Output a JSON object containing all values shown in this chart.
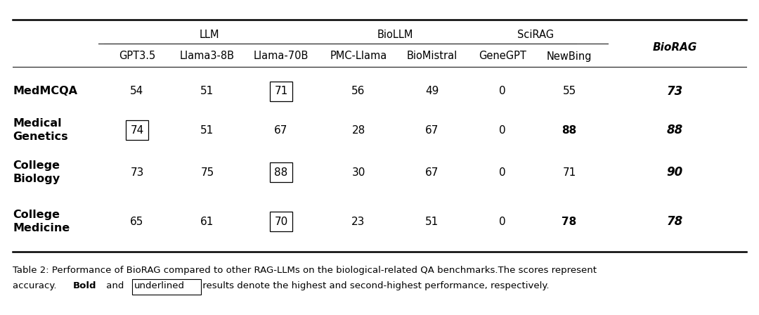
{
  "col_headers": [
    "GPT3.5",
    "Llama3-8B",
    "Llama-70B",
    "PMC-Llama",
    "BioMistral",
    "GeneGPT",
    "NewBing"
  ],
  "biorag_header": "BioRAG",
  "row_headers": [
    "MedMCQA",
    "Medical\nGenetics",
    "College\nBiology",
    "College\nMedicine"
  ],
  "data": [
    [
      54,
      51,
      71,
      56,
      49,
      0,
      55,
      73
    ],
    [
      74,
      51,
      67,
      28,
      67,
      0,
      88,
      88
    ],
    [
      73,
      75,
      88,
      30,
      67,
      0,
      71,
      90
    ],
    [
      65,
      61,
      70,
      23,
      51,
      0,
      78,
      78
    ]
  ],
  "bold_non_biorag": [
    [],
    [
      6
    ],
    [],
    [
      6
    ]
  ],
  "boxed_cells": [
    [
      2
    ],
    [
      0
    ],
    [
      2
    ],
    [
      2
    ]
  ],
  "group_labels": [
    "LLM",
    "BioLLM",
    "SciRAG"
  ],
  "group_col_ranges": [
    [
      1,
      3
    ],
    [
      4,
      5
    ],
    [
      6,
      7
    ]
  ],
  "caption_line1": "Table 2: Performance of BioRAG compared to other RAG-LLMs on the biological-related QA benchmarks.The scores represent",
  "caption_line2_parts": [
    [
      "accuracy. ",
      false,
      false
    ],
    [
      "Bold",
      true,
      false
    ],
    [
      " and ",
      false,
      false
    ],
    [
      "underlined",
      false,
      true
    ],
    [
      " results denote the highest and second-highest performance, respectively.",
      false,
      false
    ]
  ],
  "bg_color": "#ffffff",
  "text_color": "#000000",
  "thick_lw": 1.8,
  "thin_lw": 0.7
}
